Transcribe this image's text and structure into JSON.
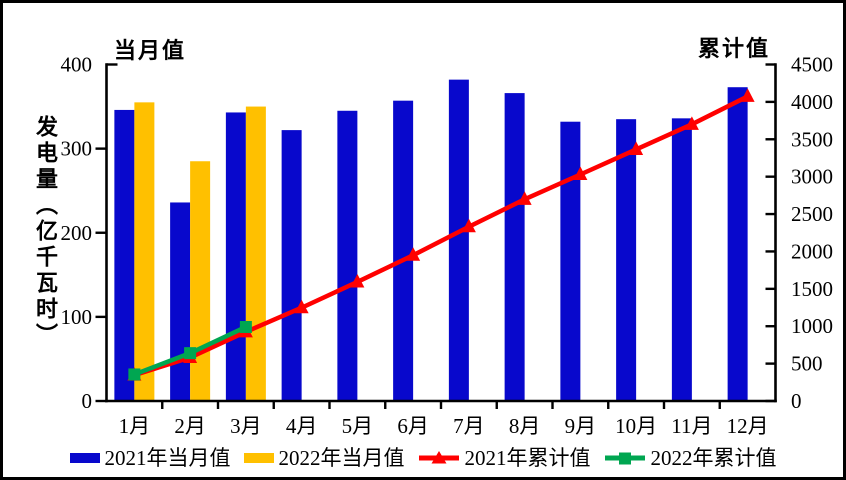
{
  "chart": {
    "left_axis_title": "当月值",
    "right_axis_title": "累计值",
    "y_axis_title": "发电量（亿千瓦时）",
    "background": "#ffffff",
    "frame_color": "#000000",
    "axis_color": "#000000"
  },
  "chart_data": {
    "type": "combo-bar-line",
    "categories": [
      "1月",
      "2月",
      "3月",
      "4月",
      "5月",
      "6月",
      "7月",
      "8月",
      "9月",
      "10月",
      "11月",
      "12月"
    ],
    "left_axis": {
      "label": "当月值",
      "range": [
        0,
        400
      ],
      "ticks": [
        0,
        100,
        200,
        300,
        400
      ]
    },
    "right_axis": {
      "label": "累计值",
      "range": [
        0,
        4500
      ],
      "ticks": [
        0,
        500,
        1000,
        1500,
        2000,
        2500,
        3000,
        3500,
        4000,
        4500
      ]
    },
    "grid": false,
    "legend_position": "bottom",
    "series": [
      {
        "name": "2021年当月值",
        "type": "bar",
        "axis": "left",
        "color": "#0808CC",
        "values": [
          346,
          236,
          343,
          322,
          345,
          357,
          382,
          366,
          332,
          335,
          336,
          373
        ]
      },
      {
        "name": "2022年当月值",
        "type": "bar",
        "axis": "left",
        "color": "#FFC000",
        "values": [
          355,
          285,
          350,
          null,
          null,
          null,
          null,
          null,
          null,
          null,
          null,
          null
        ]
      },
      {
        "name": "2021年累计值",
        "type": "line",
        "axis": "right",
        "color": "#FF0000",
        "marker": "triangle",
        "values": [
          346,
          582,
          925,
          1247,
          1592,
          1949,
          2331,
          2697,
          3029,
          3364,
          3700,
          4073
        ]
      },
      {
        "name": "2022年累计值",
        "type": "line",
        "axis": "right",
        "color": "#00A651",
        "marker": "square",
        "values": [
          355,
          640,
          990,
          null,
          null,
          null,
          null,
          null,
          null,
          null,
          null,
          null
        ]
      }
    ]
  }
}
